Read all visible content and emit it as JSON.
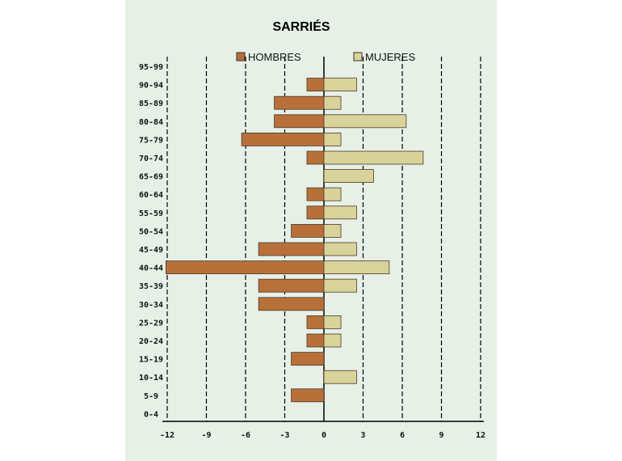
{
  "chart_data": {
    "type": "bar",
    "orientation": "horizontal",
    "title": "SARRIÉS",
    "categories": [
      "95-99",
      "90-94",
      "85-89",
      "80-84",
      "75-79",
      "70-74",
      "65-69",
      "60-64",
      "55-59",
      "50-54",
      "45-49",
      "40-44",
      "35-39",
      "30-34",
      "25-29",
      "20-24",
      "15-19",
      "10-14",
      "5-9",
      "0-4"
    ],
    "series": [
      {
        "name": "HOMBRES",
        "color": "#b8703a",
        "values": [
          0,
          -1.3,
          -3.8,
          -3.8,
          -6.3,
          -1.3,
          0,
          -1.3,
          -1.3,
          -2.5,
          -5.0,
          -12.1,
          -5.0,
          -5.0,
          -1.3,
          -1.3,
          -2.5,
          0,
          -2.5,
          0
        ]
      },
      {
        "name": "MUJERES",
        "color": "#d9d39a",
        "values": [
          0,
          2.5,
          1.3,
          6.3,
          1.3,
          7.6,
          3.8,
          1.3,
          2.5,
          1.3,
          2.5,
          5.0,
          2.5,
          0,
          1.3,
          1.3,
          0,
          2.5,
          0,
          0
        ]
      }
    ],
    "x_ticks": [
      "-12",
      "-9",
      "-6",
      "-3",
      "0",
      "3",
      "6",
      "9",
      "12"
    ],
    "xlim": [
      -12,
      12
    ],
    "grid": "vertical dashed",
    "legend_placement": "top"
  }
}
